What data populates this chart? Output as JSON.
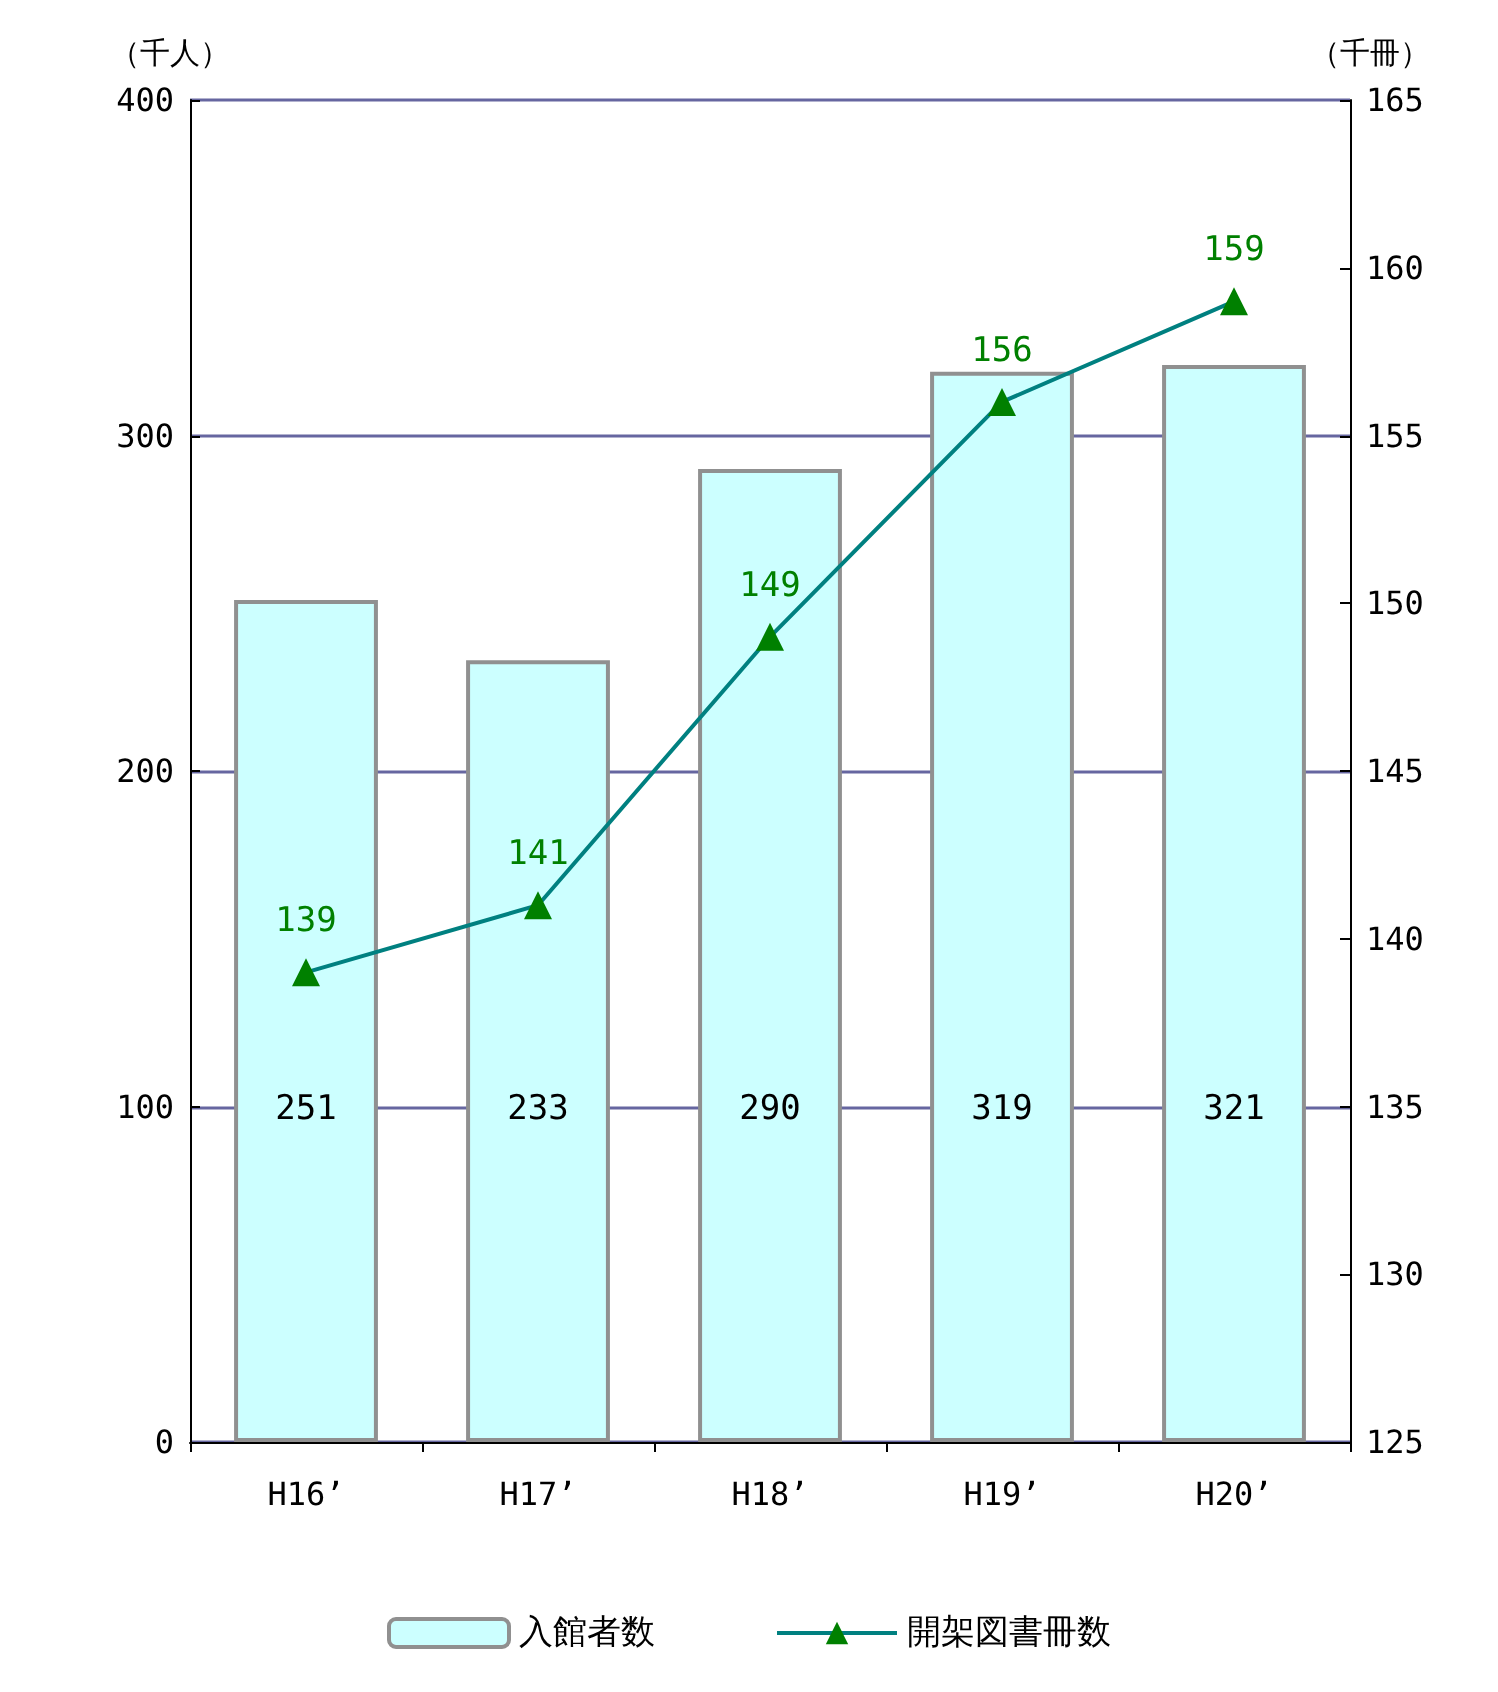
{
  "chart_data": {
    "type": "bar",
    "categories": [
      "H16’",
      "H17’",
      "H18’",
      "H19’",
      "H20’"
    ],
    "ylabel": "（千人）",
    "y2label": "（千冊）",
    "ylim": [
      0,
      400
    ],
    "yticks": [
      0,
      100,
      200,
      300,
      400
    ],
    "y2lim": [
      125,
      165
    ],
    "y2ticks": [
      125,
      130,
      135,
      140,
      145,
      150,
      155,
      160,
      165
    ],
    "grid": "y",
    "legend": "bottom",
    "data_labels": true,
    "marker": "triangle",
    "series": [
      {
        "name": "入館者数",
        "color": "#ccffff",
        "values": [
          251,
          233,
          290,
          319,
          321
        ]
      },
      {
        "name": "開架図書冊数",
        "type": "line",
        "axis": "y2",
        "color": "#008080",
        "values": [
          139,
          141,
          149,
          156,
          159
        ]
      }
    ]
  }
}
